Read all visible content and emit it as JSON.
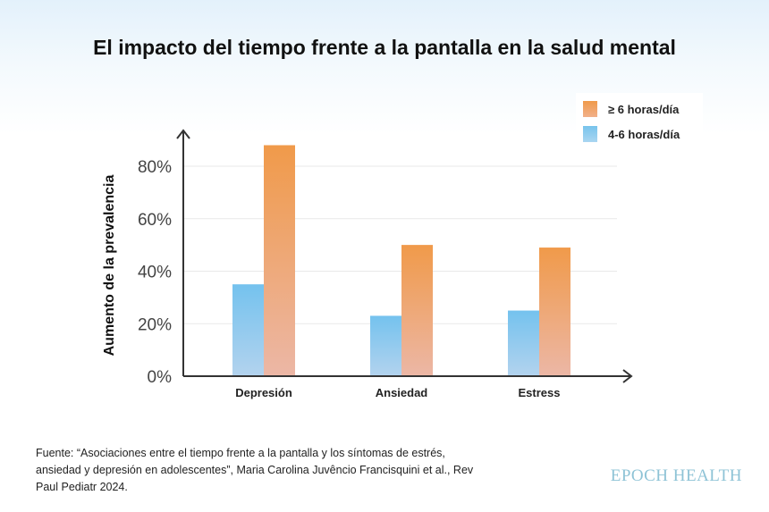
{
  "title": "El impacto del tiempo frente a la pantalla en la salud mental",
  "source": "Fuente: “Asociaciones entre el tiempo frente a la pantalla y los síntomas de estrés, ansiedad y depresión en adolescentes”, Maria Carolina Juvêncio Francisquini et al., Rev Paul Pediatr 2024.",
  "brand": "EPOCH HEALTH",
  "chart_data": {
    "type": "bar",
    "title": "El impacto del tiempo frente a la pantalla en la salud mental",
    "ylabel": "Aumento de la prevalencia",
    "xlabel": "",
    "categories": [
      "Depresión",
      "Ansiedad",
      "Estress"
    ],
    "series": [
      {
        "name": "4-6 horas/día",
        "values": [
          35,
          23,
          25
        ],
        "color": "#78c3ec"
      },
      {
        "name": "≥ 6 horas/día",
        "values": [
          88,
          50,
          49
        ],
        "color": "#f09a4a"
      }
    ],
    "ylim": [
      0,
      100
    ],
    "yticks": [
      "0%",
      "20%",
      "40%",
      "60%",
      "80%"
    ],
    "ytick_values": [
      0,
      20,
      40,
      60,
      80
    ],
    "legend_position": "top-right",
    "grid": true
  }
}
